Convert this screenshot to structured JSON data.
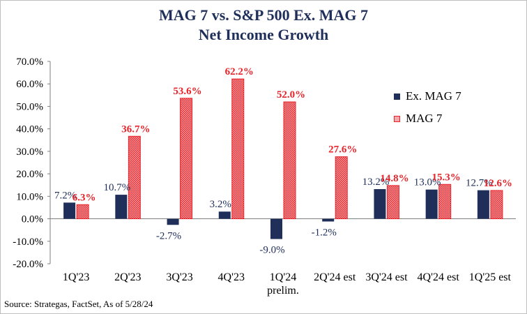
{
  "chart_data": {
    "type": "bar",
    "title": "MAG 7 vs. S&P 500 Ex. MAG 7",
    "subtitle": "Net Income Growth",
    "categories": [
      "1Q'23",
      "2Q'23",
      "3Q'23",
      "4Q'23",
      "1Q'24 prelim.",
      "2Q'24 est",
      "3Q'24 est",
      "4Q'24 est",
      "1Q'25 est"
    ],
    "series": [
      {
        "name": "Ex. MAG 7",
        "color": "#1f2f5a",
        "values": [
          7.2,
          10.7,
          -2.7,
          3.2,
          -9.0,
          -1.2,
          13.2,
          13.0,
          12.7
        ],
        "labels": [
          "7.2%",
          "10.7%",
          "-2.7%",
          "3.2%",
          "-9.0%",
          "-1.2%",
          "13.2%",
          "13.0%",
          "12.7%"
        ]
      },
      {
        "name": "MAG 7",
        "color": "#e8232a",
        "values": [
          6.3,
          36.7,
          53.6,
          62.2,
          52.0,
          27.6,
          14.8,
          15.3,
          12.6
        ],
        "labels": [
          "6.3%",
          "36.7%",
          "53.6%",
          "62.2%",
          "52.0%",
          "27.6%",
          "14.8%",
          "15.3%",
          "12.6%"
        ]
      }
    ],
    "ylim": [
      -20,
      70
    ],
    "yticks": [
      -20,
      -10,
      0,
      10,
      20,
      30,
      40,
      50,
      60,
      70
    ],
    "ytick_labels": [
      "-20.0%",
      "-10.0%",
      "0.0%",
      "10.0%",
      "20.0%",
      "30.0%",
      "40.0%",
      "50.0%",
      "60.0%",
      "70.0%"
    ],
    "legend_position": "right",
    "grid": false
  },
  "source": "Source: Strategas, FactSet, As of 5/28/24"
}
